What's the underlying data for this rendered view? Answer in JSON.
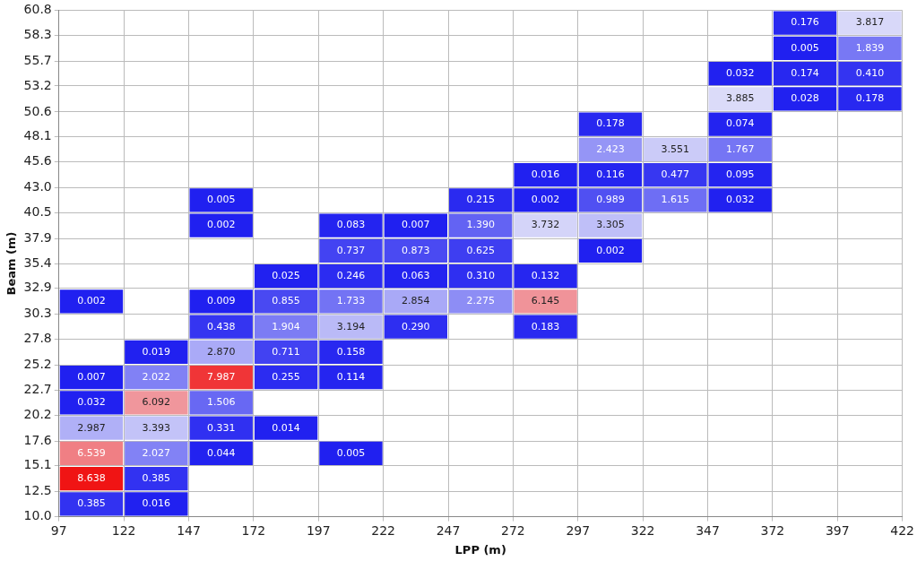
{
  "chart_data": {
    "type": "heatmap",
    "xlabel": "LPP (m)",
    "ylabel": "Beam (m)",
    "xlim": [
      97,
      422
    ],
    "xticks": [
      97,
      122,
      147,
      172,
      197,
      222,
      247,
      272,
      297,
      322,
      347,
      372,
      397,
      422
    ],
    "ylim": [
      10,
      60.8
    ],
    "yticks": [
      {
        "value": 10,
        "label": "10.0"
      },
      12.5,
      15.1,
      17.6,
      20.2,
      22.7,
      25.2,
      27.8,
      30.3,
      32.9,
      35.4,
      37.9,
      40.5,
      {
        "value": 43,
        "label": "43.0"
      },
      45.6,
      48.1,
      50.6,
      53.2,
      55.7,
      58.3,
      60.8
    ],
    "grid": true,
    "cell_labels": [
      [
        null,
        null,
        null,
        null,
        null,
        null,
        null,
        null,
        null,
        null,
        null,
        "0.176",
        "3.817"
      ],
      [
        null,
        null,
        null,
        null,
        null,
        null,
        null,
        null,
        null,
        null,
        null,
        "0.005",
        "1.839"
      ],
      [
        null,
        null,
        null,
        null,
        null,
        null,
        null,
        null,
        null,
        null,
        "0.032",
        "0.174",
        "0.410"
      ],
      [
        null,
        null,
        null,
        null,
        null,
        null,
        null,
        null,
        null,
        null,
        "3.885",
        "0.028",
        "0.178"
      ],
      [
        null,
        null,
        null,
        null,
        null,
        null,
        null,
        null,
        "0.178",
        null,
        "0.074",
        null,
        null
      ],
      [
        null,
        null,
        null,
        null,
        null,
        null,
        null,
        null,
        "2.423",
        "3.551",
        "1.767",
        null,
        null
      ],
      [
        null,
        null,
        null,
        null,
        null,
        null,
        null,
        "0.016",
        "0.116",
        "0.477",
        "0.095",
        null,
        null
      ],
      [
        null,
        null,
        "0.005",
        null,
        null,
        null,
        "0.215",
        "0.002",
        "0.989",
        "1.615",
        "0.032",
        null,
        null
      ],
      [
        null,
        null,
        "0.002",
        null,
        "0.083",
        "0.007",
        "1.390",
        "3.732",
        "3.305",
        null,
        null,
        null,
        null
      ],
      [
        null,
        null,
        null,
        null,
        "0.737",
        "0.873",
        "0.625",
        null,
        "0.002",
        null,
        null,
        null,
        null
      ],
      [
        null,
        null,
        null,
        "0.025",
        "0.246",
        "0.063",
        "0.310",
        "0.132",
        null,
        null,
        null,
        null,
        null
      ],
      [
        "0.002",
        null,
        "0.009",
        "0.855",
        "1.733",
        "2.854",
        "2.275",
        "6.145",
        null,
        null,
        null,
        null,
        null
      ],
      [
        null,
        null,
        "0.438",
        "1.904",
        "3.194",
        "0.290",
        null,
        "0.183",
        null,
        null,
        null,
        null,
        null
      ],
      [
        null,
        "0.019",
        "2.870",
        "0.711",
        "0.158",
        null,
        null,
        null,
        null,
        null,
        null,
        null,
        null
      ],
      [
        "0.007",
        "2.022",
        "7.987",
        "0.255",
        "0.114",
        null,
        null,
        null,
        null,
        null,
        null,
        null,
        null
      ],
      [
        "0.032",
        "6.092",
        "1.506",
        null,
        null,
        null,
        null,
        null,
        null,
        null,
        null,
        null,
        null
      ],
      [
        "2.987",
        "3.393",
        "0.331",
        "0.014",
        null,
        null,
        null,
        null,
        null,
        null,
        null,
        null,
        null
      ],
      [
        "6.539",
        "2.027",
        "0.044",
        null,
        "0.005",
        null,
        null,
        null,
        null,
        null,
        null,
        null,
        null
      ],
      [
        "8.638",
        "0.385",
        null,
        null,
        null,
        null,
        null,
        null,
        null,
        null,
        null,
        null,
        null
      ],
      [
        "0.385",
        "0.016",
        null,
        null,
        null,
        null,
        null,
        null,
        null,
        null,
        null,
        null,
        null
      ]
    ],
    "cells": [
      [
        null,
        null,
        null,
        null,
        null,
        null,
        null,
        null,
        null,
        null,
        null,
        0.176,
        3.817
      ],
      [
        null,
        null,
        null,
        null,
        null,
        null,
        null,
        null,
        null,
        null,
        null,
        0.005,
        1.839
      ],
      [
        null,
        null,
        null,
        null,
        null,
        null,
        null,
        null,
        null,
        null,
        0.032,
        0.174,
        0.41
      ],
      [
        null,
        null,
        null,
        null,
        null,
        null,
        null,
        null,
        null,
        null,
        3.885,
        0.028,
        0.178
      ],
      [
        null,
        null,
        null,
        null,
        null,
        null,
        null,
        null,
        0.178,
        null,
        0.074,
        null,
        null
      ],
      [
        null,
        null,
        null,
        null,
        null,
        null,
        null,
        null,
        2.423,
        3.551,
        1.767,
        null,
        null
      ],
      [
        null,
        null,
        null,
        null,
        null,
        null,
        null,
        0.016,
        0.116,
        0.477,
        0.095,
        null,
        null
      ],
      [
        null,
        null,
        0.005,
        null,
        null,
        null,
        0.215,
        0.002,
        0.989,
        1.615,
        0.032,
        null,
        null
      ],
      [
        null,
        null,
        0.002,
        null,
        0.083,
        0.007,
        1.39,
        3.732,
        3.305,
        null,
        null,
        null,
        null
      ],
      [
        null,
        null,
        null,
        null,
        0.737,
        0.873,
        0.625,
        null,
        0.002,
        null,
        null,
        null,
        null
      ],
      [
        null,
        null,
        null,
        0.025,
        0.246,
        0.063,
        0.31,
        0.132,
        null,
        null,
        null,
        null,
        null
      ],
      [
        0.002,
        null,
        0.009,
        0.855,
        1.733,
        2.854,
        2.275,
        6.145,
        null,
        null,
        null,
        null,
        null
      ],
      [
        null,
        null,
        0.438,
        1.904,
        3.194,
        0.29,
        null,
        0.183,
        null,
        null,
        null,
        null,
        null
      ],
      [
        null,
        0.019,
        2.87,
        0.711,
        0.158,
        null,
        null,
        null,
        null,
        null,
        null,
        null,
        null
      ],
      [
        0.007,
        2.022,
        7.987,
        0.255,
        0.114,
        null,
        null,
        null,
        null,
        null,
        null,
        null,
        null
      ],
      [
        0.032,
        6.092,
        1.506,
        null,
        null,
        null,
        null,
        null,
        null,
        null,
        null,
        null,
        null
      ],
      [
        2.987,
        3.393,
        0.331,
        0.014,
        null,
        null,
        null,
        null,
        null,
        null,
        null,
        null,
        null
      ],
      [
        6.539,
        2.027,
        0.044,
        null,
        0.005,
        null,
        null,
        null,
        null,
        null,
        null,
        null,
        null
      ],
      [
        8.638,
        0.385,
        null,
        null,
        null,
        null,
        null,
        null,
        null,
        null,
        null,
        null,
        null
      ],
      [
        0.385,
        0.016,
        null,
        null,
        null,
        null,
        null,
        null,
        null,
        null,
        null,
        null,
        null
      ]
    ]
  }
}
